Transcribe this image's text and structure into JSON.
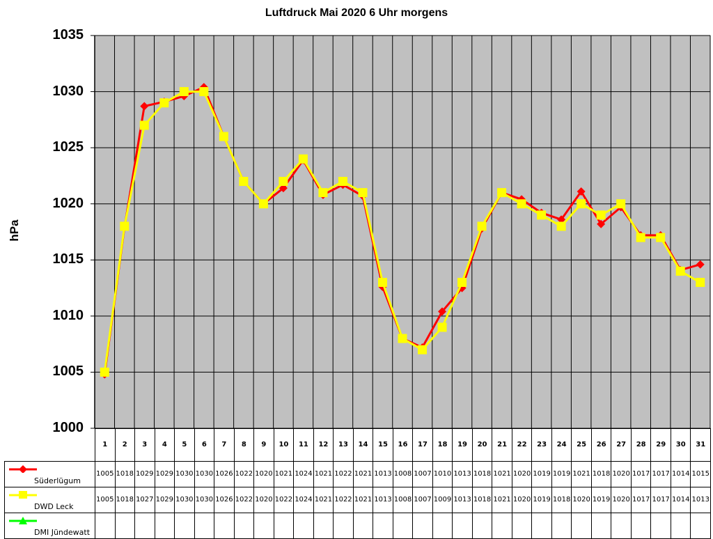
{
  "title": "Luftdruck Mai 2020 6 Uhr morgens",
  "ylabel": "hPa",
  "yticks": [
    "1035",
    "1030",
    "1025",
    "1020",
    "1015",
    "1010",
    "1005",
    "1000"
  ],
  "colors": {
    "plot_bg": "#c0c0c0",
    "grid": "#000000",
    "suederluegum": "#ff0000",
    "dwd_leck": "#ffff00",
    "dmi_juendewatt": "#00ff00"
  },
  "chart_data": {
    "type": "line",
    "title": "Luftdruck Mai 2020 6 Uhr morgens",
    "xlabel": "",
    "ylabel": "hPa",
    "ylim": [
      1000,
      1035
    ],
    "yticks": [
      1000,
      1005,
      1010,
      1015,
      1020,
      1025,
      1030,
      1035
    ],
    "grid": true,
    "legend_position": "data-table-left",
    "categories": [
      "1",
      "2",
      "3",
      "4",
      "5",
      "6",
      "7",
      "8",
      "9",
      "10",
      "11",
      "12",
      "13",
      "14",
      "15",
      "16",
      "17",
      "18",
      "19",
      "20",
      "21",
      "22",
      "23",
      "24",
      "25",
      "26",
      "27",
      "28",
      "29",
      "30",
      "31"
    ],
    "series": [
      {
        "name": "Süderlügum",
        "marker": "diamond",
        "color": "#ff0000",
        "values": [
          1004.8,
          1017.9,
          1028.7,
          1029.1,
          1029.6,
          1030.4,
          1026.0,
          1022.0,
          1020.0,
          1021.4,
          1023.9,
          1020.8,
          1021.7,
          1020.7,
          1012.6,
          1008.0,
          1007.2,
          1010.4,
          1012.5,
          1017.8,
          1021.0,
          1020.4,
          1019.2,
          1018.6,
          1021.1,
          1018.2,
          1019.7,
          1017.2,
          1017.2,
          1014.1,
          1014.6
        ],
        "table_values": [
          "1005",
          "1018",
          "1029",
          "1029",
          "1030",
          "1030",
          "1026",
          "1022",
          "1020",
          "1021",
          "1024",
          "1021",
          "1022",
          "1021",
          "1013",
          "1008",
          "1007",
          "1010",
          "1013",
          "1018",
          "1021",
          "1020",
          "1019",
          "1019",
          "1021",
          "1018",
          "1020",
          "1017",
          "1017",
          "1014",
          "1015"
        ]
      },
      {
        "name": "DWD Leck",
        "marker": "square",
        "color": "#ffff00",
        "values": [
          1005,
          1018,
          1027,
          1029,
          1030,
          1030,
          1026,
          1022,
          1020,
          1022,
          1024,
          1021,
          1022,
          1021,
          1013,
          1008,
          1007,
          1009,
          1013,
          1018,
          1021,
          1020,
          1019,
          1018,
          1020,
          1019,
          1020,
          1017,
          1017,
          1014,
          1013
        ],
        "table_values": [
          "1005",
          "1018",
          "1027",
          "1029",
          "1030",
          "1030",
          "1026",
          "1022",
          "1020",
          "1022",
          "1024",
          "1021",
          "1022",
          "1021",
          "1013",
          "1008",
          "1007",
          "1009",
          "1013",
          "1018",
          "1021",
          "1020",
          "1019",
          "1018",
          "1020",
          "1019",
          "1020",
          "1017",
          "1017",
          "1014",
          "1013"
        ]
      },
      {
        "name": "DMI Jündewatt",
        "marker": "triangle",
        "color": "#00ff00",
        "values": [],
        "table_values": []
      }
    ]
  }
}
